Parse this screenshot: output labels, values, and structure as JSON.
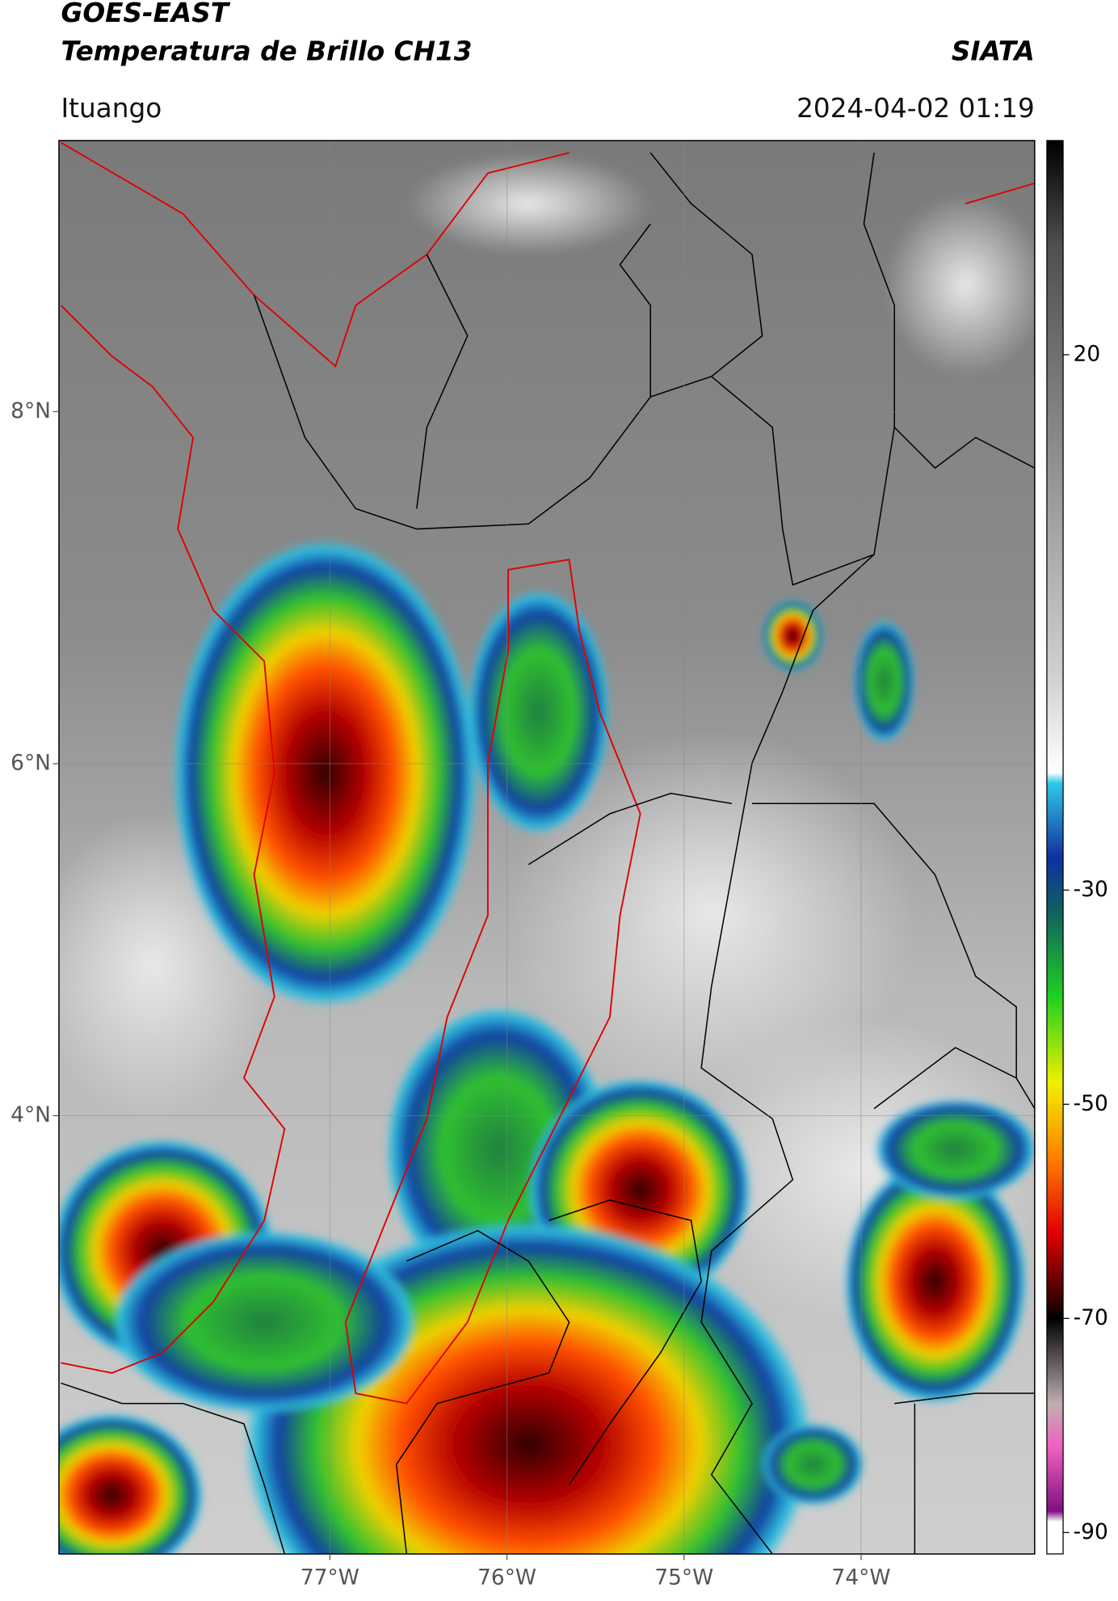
{
  "header": {
    "title": "GOES-EAST",
    "subtitle": "Temperatura de Brillo CH13",
    "source": "SIATA",
    "location": "Ituango",
    "datetime": "2024-04-02 01:19"
  },
  "map": {
    "lonlim": [
      -78.53,
      -73.02
    ],
    "latlim": [
      1.51,
      9.54
    ],
    "lonticks": [
      {
        "value": -77,
        "label": "77°W"
      },
      {
        "value": -76,
        "label": "76°W"
      },
      {
        "value": -75,
        "label": "75°W"
      },
      {
        "value": -74,
        "label": "74°W"
      }
    ],
    "latticks": [
      {
        "value": 4,
        "label": "4°N"
      },
      {
        "value": 6,
        "label": "6°N"
      },
      {
        "value": 8,
        "label": "8°N"
      }
    ],
    "grid": true
  },
  "colorbar": {
    "lim": [
      -92,
      40
    ],
    "ticks": [
      -90,
      -70,
      -50,
      -30,
      20
    ],
    "colormap": [
      {
        "value": 40,
        "color": "#000000"
      },
      {
        "value": 30,
        "color": "#505050"
      },
      {
        "value": -10,
        "color": "#d0d0d0"
      },
      {
        "value": -19,
        "color": "#ffffff"
      },
      {
        "value": -20,
        "color": "#30c8e8"
      },
      {
        "value": -27,
        "color": "#1030a0"
      },
      {
        "value": -32,
        "color": "#106060"
      },
      {
        "value": -40,
        "color": "#20d020"
      },
      {
        "value": -48,
        "color": "#f0f000"
      },
      {
        "value": -55,
        "color": "#ff8000"
      },
      {
        "value": -62,
        "color": "#e00000"
      },
      {
        "value": -68,
        "color": "#400000"
      },
      {
        "value": -70,
        "color": "#000000"
      },
      {
        "value": -78,
        "color": "#c0b0b0"
      },
      {
        "value": -82,
        "color": "#f060c0"
      },
      {
        "value": -88,
        "color": "#801080"
      },
      {
        "value": -89,
        "color": "#ffffff"
      },
      {
        "value": -92,
        "color": "#ffffff"
      }
    ]
  }
}
